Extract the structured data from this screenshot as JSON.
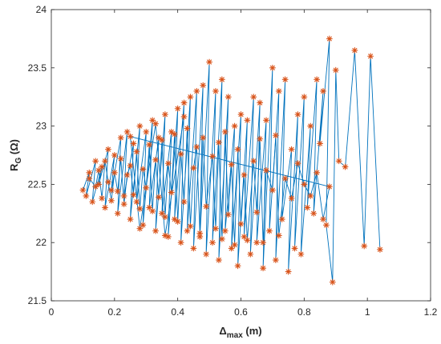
{
  "chart_data": {
    "type": "line",
    "title": "",
    "xlabel": {
      "main": "Δ",
      "sub": "max",
      "unit": " (m)"
    },
    "ylabel": {
      "main": "R",
      "sub": "G",
      "unit": " (Ω)"
    },
    "xlim": [
      0,
      1.2
    ],
    "ylim": [
      21.5,
      24
    ],
    "xticks": [
      0,
      0.2,
      0.4,
      0.6,
      0.8,
      1,
      1.2
    ],
    "xtick_labels": [
      "0",
      "0.2",
      "0.4",
      "0.6",
      "0.8",
      "1",
      "1.2"
    ],
    "yticks": [
      21.5,
      22,
      22.5,
      23,
      23.5,
      24
    ],
    "ytick_labels": [
      "21.5",
      "22",
      "22.5",
      "23",
      "23.5",
      "24"
    ],
    "grid": false,
    "series": [
      {
        "line_color": "#0072BD",
        "marker": "asterisk",
        "marker_color": "#D95319",
        "x": [
          0.1,
          0.12,
          0.11,
          0.14,
          0.13,
          0.16,
          0.15,
          0.18,
          0.17,
          0.2,
          0.19,
          0.22,
          0.21,
          0.24,
          0.23,
          0.26,
          0.25,
          0.28,
          0.27,
          0.3,
          0.29,
          0.32,
          0.31,
          0.34,
          0.33,
          0.36,
          0.35,
          0.38,
          0.37,
          0.4,
          0.39,
          0.42,
          0.41,
          0.44,
          0.43,
          0.46,
          0.45,
          0.48,
          0.47,
          0.5,
          0.49,
          0.52,
          0.51,
          0.54,
          0.53,
          0.56,
          0.55,
          0.58,
          0.57,
          0.6,
          0.59,
          0.62,
          0.61,
          0.64,
          0.63,
          0.66,
          0.65,
          0.68,
          0.67,
          0.7,
          0.69,
          0.72,
          0.71,
          0.74,
          0.73,
          0.76,
          0.75,
          0.78,
          0.77,
          0.8,
          0.79,
          0.82,
          0.81,
          0.84,
          0.83,
          0.86,
          0.85,
          0.88,
          0.87,
          0.89,
          0.9,
          0.91,
          0.93,
          0.96,
          0.99,
          1.01,
          1.04
        ],
        "y": [
          22.45,
          22.6,
          22.4,
          22.7,
          22.35,
          22.65,
          22.5,
          22.8,
          22.3,
          22.75,
          22.45,
          22.9,
          22.25,
          22.95,
          22.4,
          22.85,
          22.2,
          23.0,
          22.35,
          22.95,
          22.15,
          23.05,
          22.3,
          22.9,
          22.1,
          23.1,
          22.25,
          22.95,
          22.05,
          23.15,
          22.2,
          23.2,
          22.0,
          23.25,
          22.1,
          23.3,
          21.95,
          23.35,
          22.05,
          23.55,
          21.9,
          23.3,
          22.0,
          23.4,
          21.85,
          23.25,
          22.1,
          23.0,
          21.95,
          23.1,
          21.8,
          23.05,
          22.05,
          23.25,
          21.9,
          23.2,
          22.0,
          23.05,
          21.78,
          23.5,
          22.1,
          23.3,
          21.85,
          23.4,
          22.2,
          22.8,
          21.75,
          23.1,
          21.95,
          23.25,
          21.9,
          23.0,
          22.3,
          23.4,
          22.25,
          23.3,
          22.85,
          23.75,
          22.15,
          21.66,
          23.48,
          22.7,
          22.65,
          23.65,
          21.97,
          23.6,
          21.94
        ],
        "extra_points": [
          [
            0.12,
            22.55
          ],
          [
            0.14,
            22.48
          ],
          [
            0.15,
            22.62
          ],
          [
            0.16,
            22.38
          ],
          [
            0.17,
            22.7
          ],
          [
            0.18,
            22.52
          ],
          [
            0.19,
            22.36
          ],
          [
            0.2,
            22.6
          ],
          [
            0.21,
            22.44
          ],
          [
            0.22,
            22.72
          ],
          [
            0.23,
            22.33
          ],
          [
            0.24,
            22.58
          ],
          [
            0.25,
            22.66
          ],
          [
            0.26,
            22.41
          ],
          [
            0.27,
            22.78
          ],
          [
            0.28,
            22.29
          ],
          [
            0.29,
            22.63
          ],
          [
            0.3,
            22.47
          ],
          [
            0.31,
            22.84
          ],
          [
            0.32,
            22.27
          ],
          [
            0.33,
            22.71
          ],
          [
            0.34,
            22.39
          ],
          [
            0.35,
            22.88
          ],
          [
            0.36,
            22.22
          ],
          [
            0.37,
            22.68
          ],
          [
            0.38,
            22.43
          ],
          [
            0.39,
            22.93
          ],
          [
            0.4,
            22.18
          ],
          [
            0.41,
            22.76
          ],
          [
            0.42,
            22.35
          ],
          [
            0.43,
            22.98
          ],
          [
            0.44,
            22.14
          ],
          [
            0.45,
            22.64
          ],
          [
            0.46,
            22.82
          ],
          [
            0.47,
            22.08
          ],
          [
            0.48,
            22.9
          ],
          [
            0.49,
            22.31
          ],
          [
            0.51,
            22.74
          ],
          [
            0.52,
            22.12
          ],
          [
            0.53,
            22.86
          ],
          [
            0.54,
            22.03
          ],
          [
            0.55,
            22.95
          ],
          [
            0.56,
            22.24
          ],
          [
            0.57,
            22.67
          ],
          [
            0.58,
            21.98
          ],
          [
            0.59,
            22.8
          ],
          [
            0.6,
            22.16
          ],
          [
            0.61,
            22.58
          ],
          [
            0.62,
            22.02
          ],
          [
            0.64,
            22.7
          ],
          [
            0.65,
            22.26
          ],
          [
            0.66,
            22.89
          ],
          [
            0.67,
            22.0
          ],
          [
            0.68,
            22.62
          ],
          [
            0.7,
            22.45
          ],
          [
            0.71,
            22.92
          ],
          [
            0.72,
            22.06
          ],
          [
            0.74,
            22.55
          ],
          [
            0.76,
            22.38
          ],
          [
            0.78,
            22.68
          ],
          [
            0.8,
            22.5
          ],
          [
            0.82,
            22.4
          ],
          [
            0.84,
            22.6
          ],
          [
            0.86,
            22.2
          ],
          [
            0.88,
            22.48
          ],
          [
            0.25,
            22.91
          ],
          [
            0.28,
            22.12
          ],
          [
            0.33,
            23.02
          ],
          [
            0.36,
            22.06
          ],
          [
            0.42,
            23.08
          ]
        ]
      }
    ]
  }
}
